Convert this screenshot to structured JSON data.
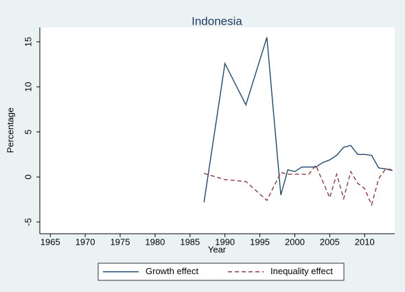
{
  "chart_data": {
    "type": "line",
    "title": "Indonesia",
    "x_label": "Year",
    "y_label": "Percentage",
    "x": [
      1987,
      1990,
      1993,
      1996,
      1998,
      1999,
      2000,
      2001,
      2002,
      2003,
      2004,
      2005,
      2006,
      2007,
      2008,
      2009,
      2010,
      2011,
      2012,
      2013,
      2014
    ],
    "series": [
      {
        "name": "Growth effect",
        "color": "#1a476f",
        "dash": "solid",
        "values": [
          -2.8,
          12.6,
          8.0,
          15.5,
          -2.0,
          0.8,
          0.6,
          1.1,
          1.1,
          1.1,
          1.6,
          1.9,
          2.4,
          3.3,
          3.5,
          2.5,
          2.5,
          2.4,
          1.0,
          0.9,
          0.7
        ]
      },
      {
        "name": "Inequality effect",
        "color": "#90353b",
        "dash": "dashed",
        "values": [
          0.4,
          -0.3,
          -0.5,
          -2.6,
          0.5,
          0.3,
          0.3,
          0.3,
          0.3,
          1.3,
          -0.5,
          -2.3,
          0.3,
          -2.4,
          0.6,
          -0.7,
          -1.3,
          -3.1,
          -0.2,
          0.9,
          0.8
        ]
      }
    ],
    "xlim": [
      1963.5,
      2014.3
    ],
    "xticks": [
      1965,
      1970,
      1975,
      1980,
      1985,
      1990,
      1995,
      2000,
      2005,
      2010
    ],
    "ylim": [
      -6.3,
      16.6
    ],
    "yticks": [
      -5,
      0,
      5,
      10,
      15
    ],
    "grid": false,
    "legend": "bottom"
  }
}
